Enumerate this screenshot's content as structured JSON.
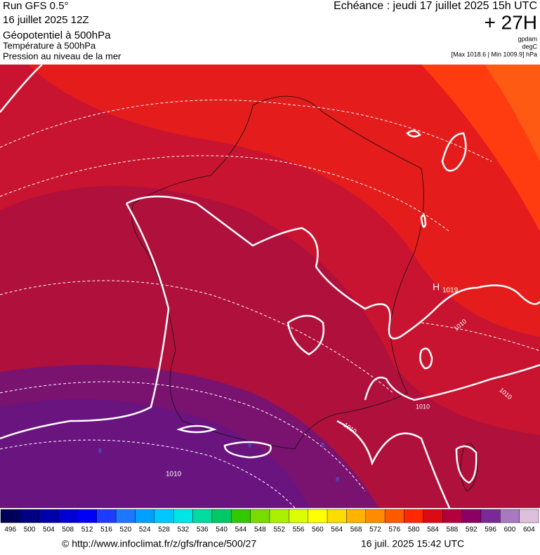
{
  "header": {
    "left": [
      "Run GFS 0.5°",
      "16 juillet 2025 12Z",
      "Géopotentiel à 500hPa",
      "Température à 500hPa",
      "Pression au niveau de la mer"
    ],
    "echeance": "Echéance : jeudi 17 juillet 2025 15h UTC",
    "lead": "+ 27H",
    "units": [
      "gpdam",
      "degC",
      "[Max 1018.6 | Min 1009.9] hPa"
    ]
  },
  "map": {
    "labels": {
      "high": "H",
      "high_value": "1019",
      "isobars": [
        "1010",
        "1010",
        "1010",
        "1010",
        "1010"
      ],
      "temps": [
        "8",
        "8",
        "8",
        "8"
      ]
    }
  },
  "colorbar": {
    "labels": [
      "496",
      "500",
      "504",
      "508",
      "512",
      "516",
      "520",
      "524",
      "528",
      "532",
      "536",
      "540",
      "544",
      "548",
      "552",
      "556",
      "560",
      "564",
      "568",
      "572",
      "576",
      "580",
      "584",
      "588",
      "592",
      "596",
      "600",
      "604"
    ],
    "colors": [
      "#00005a",
      "#000082",
      "#0000aa",
      "#0000d2",
      "#0000fa",
      "#1e3cff",
      "#1e78ff",
      "#00a0ff",
      "#00c8ff",
      "#00e6e6",
      "#00dca0",
      "#00c864",
      "#32c800",
      "#78dc00",
      "#aaf000",
      "#dcff00",
      "#ffff00",
      "#ffdc00",
      "#ffb400",
      "#ff8c00",
      "#ff5a00",
      "#ff2800",
      "#dc0a14",
      "#b4003c",
      "#8c0064",
      "#7a2a96",
      "#a878c0",
      "#dcc0dc"
    ]
  },
  "footer": {
    "url": "© http://www.infoclimat.fr/z/gfs/france/500/27",
    "date": "16 juil. 2025 15:42 UTC"
  }
}
